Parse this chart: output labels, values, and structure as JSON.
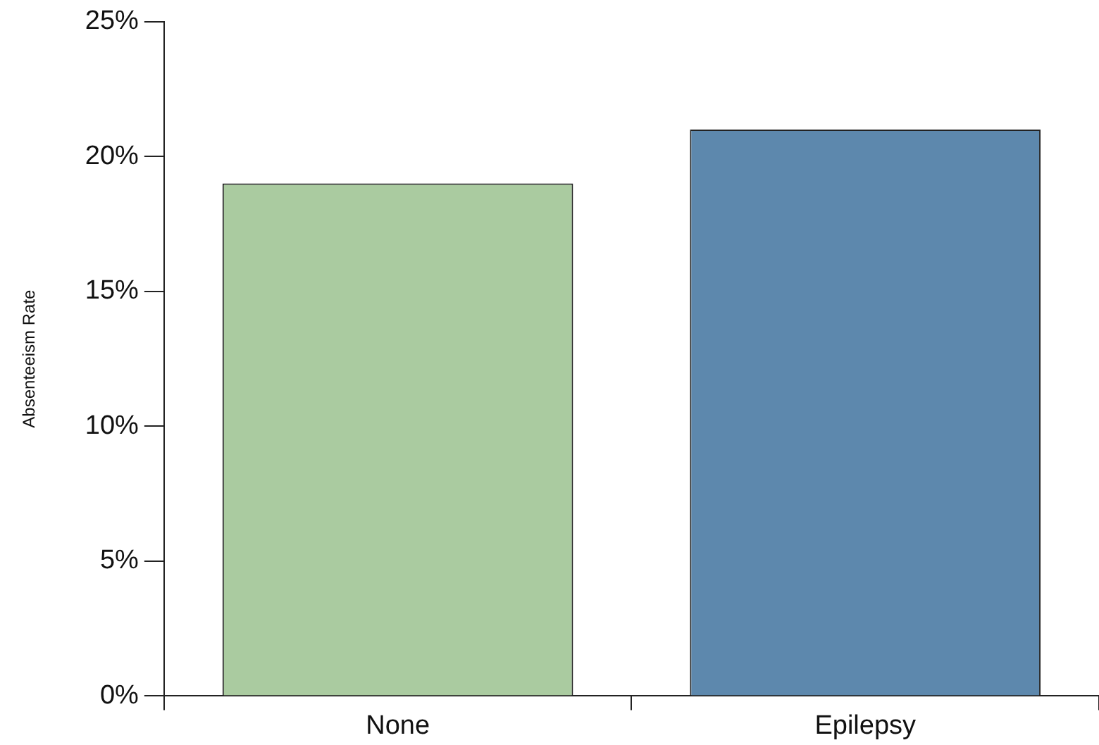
{
  "chart_data": {
    "type": "bar",
    "ylabel": "Absenteeism Rate",
    "categories": [
      "None",
      "Epilepsy"
    ],
    "values": [
      19,
      21
    ],
    "colors": [
      "#aacba0",
      "#5d88ad"
    ],
    "ylim": [
      0,
      25
    ],
    "yticks": [
      {
        "value": 0,
        "label": "0%"
      },
      {
        "value": 5,
        "label": "5%"
      },
      {
        "value": 10,
        "label": "10%"
      },
      {
        "value": 15,
        "label": "15%"
      },
      {
        "value": 20,
        "label": "20%"
      },
      {
        "value": 25,
        "label": "25%"
      }
    ],
    "grid": false,
    "legend": false
  }
}
